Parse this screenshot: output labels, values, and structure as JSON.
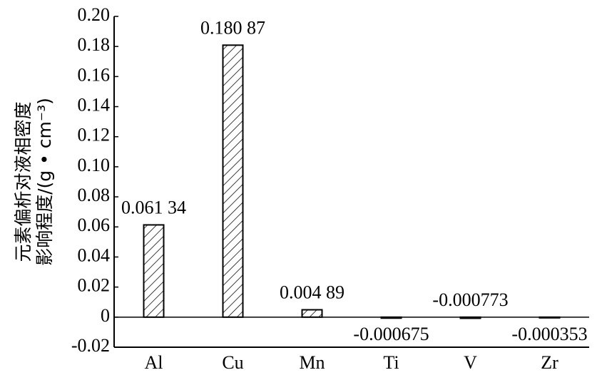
{
  "chart_data": {
    "type": "bar",
    "y_label": [
      "元素偏析对液相密度",
      "影响程度/(g • cm⁻³)"
    ],
    "categories": [
      "Al",
      "Cu",
      "Mn",
      "Ti",
      "V",
      "Zr"
    ],
    "values": [
      0.06134,
      0.18087,
      0.00489,
      -0.000675,
      -0.000773,
      -0.000353
    ],
    "value_labels": [
      "0.061 34",
      "0.180 87",
      "0.004 89",
      "-0.000675",
      "-0.000773",
      "-0.000353"
    ],
    "color": "#000000",
    "ylim": [
      -0.02,
      0.2
    ],
    "yticks": [
      -0.02,
      0,
      0.02,
      0.04,
      0.06,
      0.08,
      {
        "value": 0.1,
        "label": "0.10"
      },
      0.12,
      0.14,
      0.16,
      0.18,
      {
        "value": 0.2,
        "label": "0.20"
      }
    ],
    "grid": false
  }
}
